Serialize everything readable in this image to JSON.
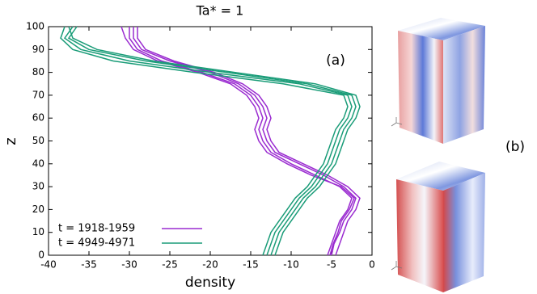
{
  "chart_data": {
    "type": "profile",
    "title": "Ta* = 1",
    "xlabel": "density",
    "ylabel": "z",
    "xlim": [
      -40,
      0
    ],
    "xticks": [
      -40,
      -35,
      -30,
      -25,
      -20,
      -15,
      -10,
      -5,
      0
    ],
    "ylim": [
      0,
      100
    ],
    "yticks": [
      0,
      10,
      20,
      30,
      40,
      50,
      60,
      70,
      80,
      90,
      100
    ],
    "z": [
      0,
      5,
      10,
      15,
      20,
      25,
      30,
      35,
      40,
      45,
      50,
      55,
      60,
      65,
      70,
      75,
      80,
      85,
      90,
      95,
      100
    ],
    "legend": "lower left",
    "annotations": [
      "(a)",
      "(b)"
    ],
    "series": [
      {
        "name": "t = 1918-1959",
        "color": "#9a2bd0",
        "values": [
          [
            -5.5,
            -5,
            -4.5,
            -4,
            -3,
            -2.5,
            -4,
            -7,
            -10,
            -12.5,
            -13.5,
            -14,
            -13.5,
            -14,
            -15,
            -17,
            -21,
            -26,
            -29,
            -30,
            -30
          ],
          [
            -5,
            -4.7,
            -4,
            -3.5,
            -2.5,
            -2,
            -3.5,
            -6,
            -9,
            -12,
            -13,
            -13.5,
            -13,
            -13.5,
            -14.5,
            -16.5,
            -20,
            -25,
            -28.5,
            -29.5,
            -29.5
          ],
          [
            -4.5,
            -4,
            -3.5,
            -3,
            -2,
            -1.5,
            -3,
            -5.5,
            -8.5,
            -11.5,
            -12.5,
            -13,
            -12.5,
            -13,
            -14,
            -16,
            -19.5,
            -24.5,
            -28,
            -29,
            -29
          ],
          [
            -5.2,
            -4.8,
            -4.2,
            -3.8,
            -2.8,
            -2.2,
            -3.8,
            -7.5,
            -10.5,
            -13,
            -14,
            -14.5,
            -14,
            -14.5,
            -15.5,
            -17.5,
            -21.5,
            -26.5,
            -29.5,
            -30.5,
            -31
          ]
        ]
      },
      {
        "name": "t = 4949-4971",
        "color": "#1a9c78",
        "values": [
          [
            -13,
            -12.5,
            -12,
            -11,
            -10,
            -9,
            -7.5,
            -6.5,
            -5.5,
            -5,
            -4.5,
            -4,
            -3,
            -2.5,
            -3,
            -9,
            -20,
            -30,
            -36,
            -38,
            -37
          ],
          [
            -12.5,
            -12,
            -11.5,
            -10.5,
            -9.5,
            -8.5,
            -7,
            -6,
            -5,
            -4.5,
            -4,
            -3.5,
            -2.5,
            -2,
            -2.5,
            -8,
            -18,
            -28,
            -35,
            -37.5,
            -36.5
          ],
          [
            -13.5,
            -13,
            -12.5,
            -11.5,
            -10.5,
            -9.5,
            -8,
            -7,
            -6,
            -5.5,
            -5,
            -4.5,
            -3.5,
            -3,
            -3.5,
            -11,
            -22,
            -32,
            -37,
            -38.5,
            -38
          ],
          [
            -12,
            -11.5,
            -11,
            -10,
            -9,
            -8,
            -6.5,
            -5.5,
            -4.5,
            -4,
            -3.5,
            -3,
            -2,
            -1.5,
            -2,
            -7,
            -17,
            -27,
            -34,
            -37,
            -37.5
          ]
        ]
      }
    ]
  }
}
